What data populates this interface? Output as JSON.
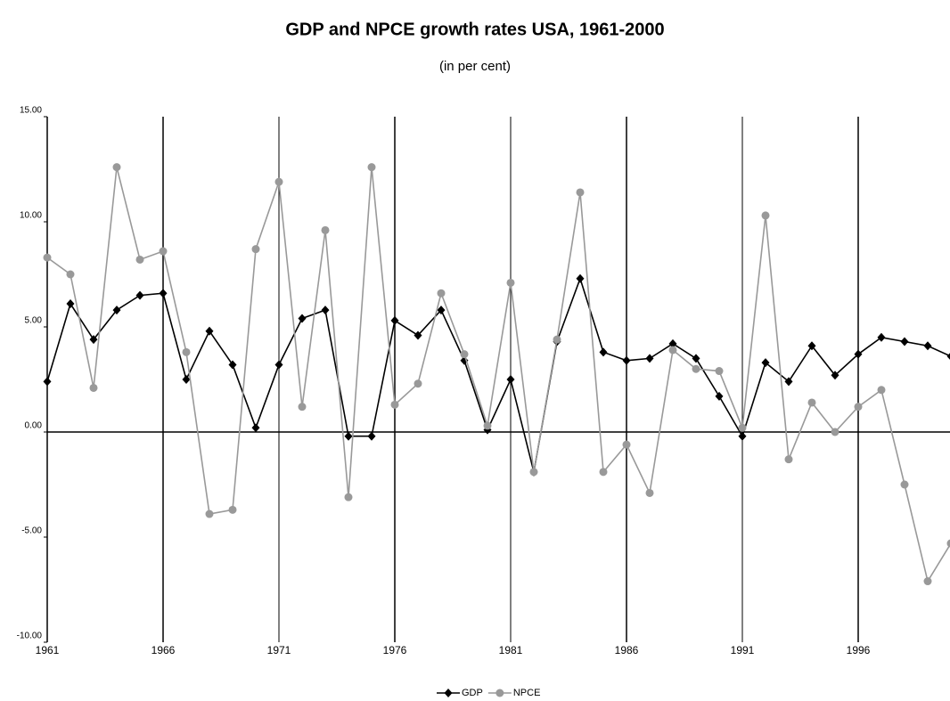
{
  "chart_data": {
    "type": "line",
    "title": "GDP and NPCE growth rates USA, 1961-2000",
    "subtitle": "(in per cent)",
    "x": [
      1961,
      1962,
      1963,
      1964,
      1965,
      1966,
      1967,
      1968,
      1969,
      1970,
      1971,
      1972,
      1973,
      1974,
      1975,
      1976,
      1977,
      1978,
      1979,
      1980,
      1981,
      1982,
      1983,
      1984,
      1985,
      1986,
      1987,
      1988,
      1989,
      1990,
      1991,
      1992,
      1993,
      1994,
      1995,
      1996,
      1997,
      1998,
      1999,
      2000
    ],
    "series": [
      {
        "name": "GDP",
        "color": "#000000",
        "marker": "diamond",
        "values": [
          2.4,
          6.1,
          4.4,
          5.8,
          6.5,
          6.6,
          2.5,
          4.8,
          3.2,
          0.2,
          3.2,
          5.4,
          5.8,
          -0.2,
          -0.2,
          5.3,
          4.6,
          5.8,
          3.4,
          0.1,
          2.5,
          -1.9,
          4.3,
          7.3,
          3.8,
          3.4,
          3.5,
          4.2,
          3.5,
          1.7,
          -0.2,
          3.3,
          2.4,
          4.1,
          2.7,
          3.7,
          4.5,
          4.3,
          4.1,
          3.6
        ]
      },
      {
        "name": "NPCE",
        "color": "#999999",
        "marker": "circle",
        "values": [
          8.3,
          7.5,
          2.1,
          12.6,
          8.2,
          8.6,
          3.8,
          -3.9,
          -3.7,
          8.7,
          11.9,
          1.2,
          9.6,
          -3.1,
          12.6,
          1.3,
          2.3,
          6.6,
          3.7,
          0.3,
          7.1,
          -1.9,
          4.4,
          11.4,
          -1.9,
          -0.6,
          -2.9,
          3.9,
          3.0,
          2.9,
          0.2,
          10.3,
          -1.3,
          1.4,
          0.0,
          1.2,
          2.0,
          -2.5,
          -7.1,
          -5.3
        ]
      }
    ],
    "xlim": [
      1961,
      2000
    ],
    "xticks": [
      1961,
      1966,
      1971,
      1976,
      1981,
      1986,
      1991,
      1996
    ],
    "ylim": [
      -10,
      15
    ],
    "yticks": [
      {
        "value": -10,
        "label": "-10.00"
      },
      {
        "value": -5,
        "label": "-5.00"
      },
      {
        "value": 0,
        "label": "0.00"
      },
      {
        "value": 5,
        "label": "5.00"
      },
      {
        "value": 10,
        "label": "10.00"
      },
      {
        "value": 15,
        "label": "15.00"
      }
    ],
    "grid": "x",
    "legend": "bottom"
  }
}
